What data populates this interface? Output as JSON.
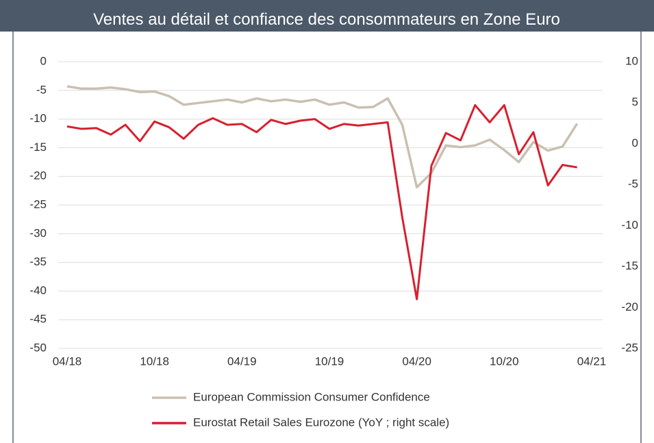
{
  "chart_data": {
    "type": "line",
    "title": "Ventes au détail et confiance des consommateurs en Zone Euro",
    "x": [
      "04/18",
      "05/18",
      "06/18",
      "07/18",
      "08/18",
      "09/18",
      "10/18",
      "11/18",
      "12/18",
      "01/19",
      "02/19",
      "03/19",
      "04/19",
      "05/19",
      "06/19",
      "07/19",
      "08/19",
      "09/19",
      "10/19",
      "11/19",
      "12/19",
      "01/20",
      "02/20",
      "03/20",
      "04/20",
      "05/20",
      "06/20",
      "07/20",
      "08/20",
      "09/20",
      "10/20",
      "11/20",
      "12/20",
      "01/21",
      "02/21",
      "03/21"
    ],
    "xlim": [
      "04/18",
      "04/21"
    ],
    "xticks": [
      "04/18",
      "10/18",
      "04/19",
      "10/19",
      "04/20",
      "10/20",
      "04/21"
    ],
    "ylim": [
      -50,
      0
    ],
    "yticks": [
      0,
      -5,
      -10,
      -15,
      -20,
      -25,
      -30,
      -35,
      -40,
      -45,
      -50
    ],
    "y2lim": [
      -25,
      10
    ],
    "y2ticks": [
      10,
      5,
      0,
      -5,
      -10,
      -15,
      -20,
      -25
    ],
    "grid": true,
    "series": [
      {
        "name": "European Commission Consumer Confidence",
        "color": "#c9c0b1",
        "axis": "y",
        "values": [
          -4.3,
          -4.7,
          -4.7,
          -4.5,
          -4.8,
          -5.3,
          -5.2,
          -6.0,
          -7.5,
          -7.2,
          -6.9,
          -6.6,
          -7.1,
          -6.4,
          -6.9,
          -6.6,
          -7.0,
          -6.6,
          -7.5,
          -7.1,
          -8.0,
          -7.9,
          -6.4,
          -11.0,
          -21.9,
          -19.4,
          -14.6,
          -14.9,
          -14.6,
          -13.6,
          -15.4,
          -17.5,
          -14.0,
          -15.5,
          -14.8,
          -10.8
        ]
      },
      {
        "name": "Eurostat Retail Sales Eurozone (YoY ; right scale)",
        "color": "#d7202e",
        "axis": "y2",
        "values": [
          2.1,
          1.8,
          1.9,
          1.1,
          2.3,
          0.3,
          2.7,
          2.0,
          0.6,
          2.3,
          3.1,
          2.3,
          2.4,
          1.4,
          2.9,
          2.4,
          2.8,
          3.0,
          1.8,
          2.4,
          2.2,
          2.4,
          2.6,
          -9.0,
          -19.0,
          -2.7,
          1.3,
          0.4,
          4.7,
          2.6,
          4.7,
          -1.3,
          1.4,
          -5.1,
          -2.6,
          -2.9
        ]
      }
    ]
  }
}
